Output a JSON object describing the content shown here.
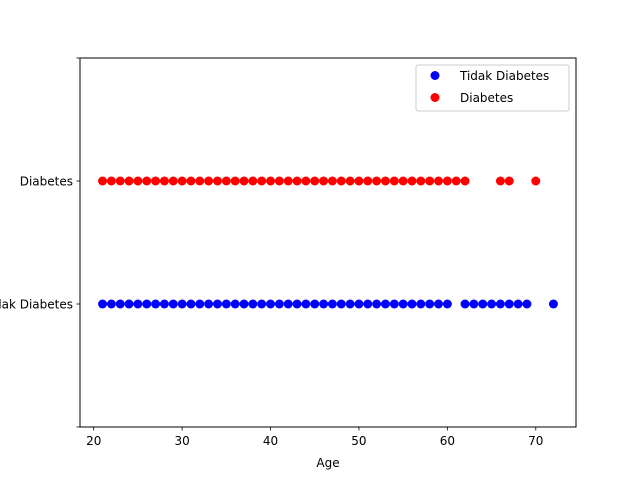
{
  "chart_data": {
    "type": "scatter",
    "title": "",
    "xlabel": "Age",
    "ylabel": "",
    "xlim": [
      18.45,
      74.55
    ],
    "x_ticks": [
      20,
      30,
      40,
      50,
      60,
      70
    ],
    "y_categories": [
      "Tidak Diabetes",
      "Diabetes"
    ],
    "y_tick_labels": [
      "Tidak Diabetes",
      "Diabetes"
    ],
    "ylim": [
      -1,
      2
    ],
    "grid": false,
    "legend": "top-right",
    "series": [
      {
        "name": "Tidak Diabetes",
        "category": 0,
        "color": "#0000ff",
        "x": [
          21,
          22,
          23,
          24,
          25,
          26,
          27,
          28,
          29,
          30,
          31,
          32,
          33,
          34,
          35,
          36,
          37,
          38,
          39,
          40,
          41,
          42,
          43,
          44,
          45,
          46,
          47,
          48,
          49,
          50,
          51,
          52,
          53,
          54,
          55,
          56,
          57,
          58,
          59,
          60,
          62,
          63,
          64,
          65,
          66,
          67,
          68,
          69,
          72
        ]
      },
      {
        "name": "Diabetes",
        "category": 1,
        "color": "#ff0000",
        "x": [
          21,
          22,
          23,
          24,
          25,
          26,
          27,
          28,
          29,
          30,
          31,
          32,
          33,
          34,
          35,
          36,
          37,
          38,
          39,
          40,
          41,
          42,
          43,
          44,
          45,
          46,
          47,
          48,
          49,
          50,
          51,
          52,
          53,
          54,
          55,
          56,
          57,
          58,
          59,
          60,
          61,
          62,
          66,
          67,
          70
        ]
      }
    ]
  }
}
